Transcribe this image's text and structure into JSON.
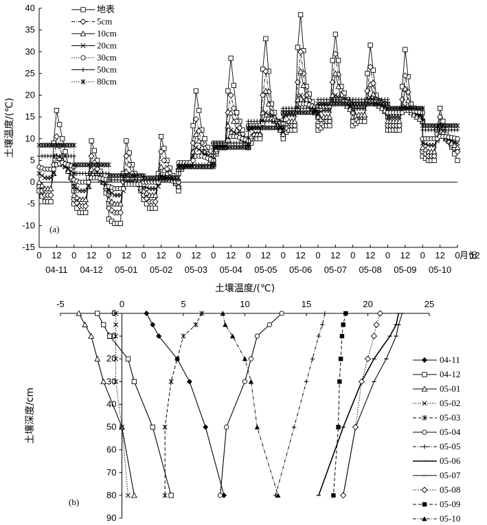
{
  "chart_data": [
    {
      "type": "line",
      "panel_label": "(a)",
      "ylabel": "土壤温度/(℃)",
      "ylim": [
        -15,
        40
      ],
      "yticks": [
        -15,
        -10,
        -5,
        0,
        5,
        10,
        15,
        20,
        25,
        30,
        35,
        40
      ],
      "x_hour_labels": [
        "0",
        "12",
        "0",
        "12",
        "0",
        "12",
        "0",
        "12",
        "0",
        "12",
        "0",
        "12",
        "0",
        "12",
        "0",
        "12",
        "0",
        "12",
        "0",
        "12",
        "0",
        "12",
        "0",
        "12",
        "0",
        "12"
      ],
      "x_month_labels": [
        "04-11",
        "04-12",
        "05-01",
        "05-02",
        "05-03",
        "05-04",
        "05-05",
        "05-06",
        "05-07",
        "05-08",
        "05-09",
        "05-10"
      ],
      "x_unit_label": "月份",
      "series_names": [
        "地表",
        "5cm",
        "10cm",
        "20cm",
        "30cm",
        "50cm",
        "80cm"
      ],
      "series": [
        {
          "name": "地表",
          "values": [
            [
              -2,
              -4.5,
              -4.5,
              9,
              16.5,
              10,
              -2
            ],
            [
              -5,
              -7,
              -7,
              1,
              9.5,
              5,
              -5
            ],
            [
              -8.5,
              -9.5,
              -9.5,
              2,
              9.5,
              4,
              -4
            ],
            [
              -4,
              -6,
              -6,
              2,
              10.5,
              5,
              -2
            ],
            [
              2,
              4,
              4,
              13,
              21,
              12,
              4
            ],
            [
              5,
              8,
              8,
              21,
              28.5,
              16,
              8
            ],
            [
              8,
              10,
              10,
              26,
              33,
              18,
              10
            ],
            [
              11,
              12,
              12,
              31,
              38.5,
              22,
              15
            ],
            [
              12,
              13,
              13,
              28,
              34,
              22,
              16
            ],
            [
              13,
              14,
              14,
              25,
              31.5,
              20,
              15
            ],
            [
              12,
              12,
              12,
              22,
              30.5,
              18,
              14
            ],
            [
              6,
              5,
              5,
              12,
              17,
              11,
              5
            ]
          ]
        },
        {
          "name": "5cm",
          "values": [
            [
              -1,
              -3,
              -3,
              4,
              10.5,
              6,
              -1
            ],
            [
              -4,
              -5.5,
              -5.5,
              0,
              6,
              3,
              -3
            ],
            [
              -6,
              -7,
              -7,
              0,
              6,
              2,
              -3
            ],
            [
              -3,
              -4.5,
              -4.5,
              1,
              7,
              3,
              -1
            ],
            [
              3,
              4,
              4,
              9,
              14.5,
              9,
              4
            ],
            [
              6,
              8,
              8,
              16,
              20,
              14,
              8
            ],
            [
              9,
              11,
              11,
              20,
              25.5,
              16,
              11
            ],
            [
              12,
              13,
              13,
              23,
              30,
              20,
              15
            ],
            [
              13,
              14,
              14,
              23,
              29.5,
              20,
              16
            ],
            [
              14,
              15,
              15,
              21,
              26.5,
              19,
              16
            ],
            [
              13,
              13,
              13,
              19,
              24.5,
              17,
              14
            ],
            [
              7,
              6,
              6,
              11,
              15,
              10,
              7
            ]
          ]
        },
        {
          "name": "10cm",
          "values": [
            [
              0,
              -1.5,
              -1.5,
              2,
              6,
              5,
              0
            ],
            [
              -3,
              -4,
              -4,
              -1,
              3,
              2,
              -2
            ],
            [
              -4,
              -5,
              -5,
              -1,
              2.5,
              1,
              -2
            ],
            [
              -2,
              -3,
              -3,
              0,
              3.5,
              2,
              -1
            ],
            [
              3,
              4,
              4,
              7,
              11,
              8,
              4
            ],
            [
              7,
              8,
              8,
              13,
              16,
              12,
              8
            ],
            [
              10,
              11,
              11,
              16,
              21,
              15,
              11
            ],
            [
              13,
              14,
              14,
              19,
              25.5,
              19,
              15
            ],
            [
              14,
              15,
              15,
              20,
              25,
              19,
              16
            ],
            [
              15,
              15.5,
              15.5,
              19,
              22.5,
              18,
              16
            ],
            [
              14,
              14,
              14,
              17,
              21.5,
              16,
              14
            ],
            [
              8,
              7,
              7,
              10,
              13,
              10,
              8
            ]
          ]
        },
        {
          "name": "20cm",
          "values": [
            [
              2,
              1,
              1,
              2,
              4,
              4,
              2
            ],
            [
              -1,
              -2,
              -2,
              -1,
              1,
              1,
              -1
            ],
            [
              -2,
              -3,
              -3,
              -2,
              0,
              0,
              -1
            ],
            [
              -1,
              -1.5,
              -1.5,
              -1,
              1.5,
              1,
              0
            ],
            [
              4,
              4,
              4,
              6,
              8,
              7,
              5
            ],
            [
              8,
              8.5,
              8.5,
              10,
              12,
              11,
              9
            ],
            [
              12,
              12.5,
              12.5,
              14,
              16,
              15,
              12
            ],
            [
              15,
              15.5,
              15.5,
              17,
              20,
              18,
              16
            ],
            [
              16,
              16.5,
              16.5,
              18,
              20,
              19,
              17
            ],
            [
              17,
              17,
              17,
              18,
              19.5,
              18.5,
              17
            ],
            [
              15,
              15,
              15,
              16,
              17.5,
              16.5,
              15
            ],
            [
              9,
              8.5,
              8.5,
              9.5,
              11,
              10,
              9
            ]
          ]
        },
        {
          "name": "30cm",
          "values": [
            [
              3.5,
              3,
              3,
              3,
              4,
              4.5,
              3.5
            ],
            [
              0.5,
              0,
              0,
              0,
              1,
              1,
              0.5
            ],
            [
              -1,
              -1.5,
              -1.5,
              -1.5,
              -0.5,
              -0.5,
              -0.5
            ],
            [
              0,
              0,
              0,
              0,
              0.5,
              0.5,
              0
            ],
            [
              4.5,
              4.5,
              4.5,
              5,
              6,
              6,
              5
            ],
            [
              9,
              9,
              9,
              9.5,
              10.5,
              10.5,
              9.5
            ],
            [
              13,
              13,
              13,
              13.5,
              14.5,
              14.5,
              13.5
            ],
            [
              16,
              16,
              16,
              16.5,
              18,
              18,
              17
            ],
            [
              17.5,
              17.5,
              17.5,
              18,
              19,
              19,
              18
            ],
            [
              18,
              18,
              18,
              18,
              18.5,
              18.5,
              18
            ],
            [
              16,
              16,
              16,
              16,
              16.5,
              16.5,
              16
            ],
            [
              10,
              10,
              10,
              10,
              10.5,
              10.5,
              10
            ]
          ]
        },
        {
          "name": "50cm",
          "values": [
            [
              6,
              6,
              6,
              6,
              6,
              6,
              6
            ],
            [
              2,
              2,
              2,
              2,
              2,
              2,
              2
            ],
            [
              0.5,
              0.5,
              0.5,
              0.5,
              0.5,
              0.5,
              0.5
            ],
            [
              0.5,
              0.5,
              0.5,
              0.5,
              0.5,
              0.5,
              0.5
            ],
            [
              4,
              4,
              4,
              4,
              4,
              4,
              4
            ],
            [
              9,
              9,
              9,
              9,
              9,
              9,
              9
            ],
            [
              14,
              14,
              14,
              14,
              14,
              14,
              14
            ],
            [
              17,
              17,
              17,
              17,
              17,
              17,
              17
            ],
            [
              19,
              19,
              19,
              19,
              19,
              19,
              19
            ],
            [
              19,
              19,
              19,
              19,
              19,
              19,
              19
            ],
            [
              17,
              17,
              17,
              17,
              17,
              17,
              17
            ],
            [
              12,
              12,
              12,
              12,
              12,
              12,
              12
            ]
          ]
        },
        {
          "name": "80cm",
          "values": [
            [
              8.5,
              8.5,
              8.5,
              8.5,
              8.5,
              8.5,
              8.5
            ],
            [
              4,
              4,
              4,
              4,
              4,
              4,
              4
            ],
            [
              1.5,
              1.5,
              1.5,
              1.5,
              1.5,
              1.5,
              1.5
            ],
            [
              1,
              1,
              1,
              1,
              1,
              1,
              1
            ],
            [
              3.5,
              3.5,
              3.5,
              3.5,
              3.5,
              3.5,
              3.5
            ],
            [
              8,
              8,
              8,
              8,
              8,
              8,
              8
            ],
            [
              12.5,
              12.5,
              12.5,
              12.5,
              12.5,
              12.5,
              12.5
            ],
            [
              16,
              16,
              16,
              16,
              16,
              16,
              16
            ],
            [
              18,
              18,
              18,
              18,
              18,
              18,
              18
            ],
            [
              18,
              18,
              18,
              18,
              18,
              18,
              18
            ],
            [
              17,
              17,
              17,
              17,
              17,
              17,
              17
            ],
            [
              13,
              13,
              13,
              13,
              13,
              13,
              13
            ]
          ]
        }
      ],
      "x_per_day_hours": [
        0,
        4,
        8,
        10,
        12,
        16,
        24
      ]
    },
    {
      "type": "line",
      "panel_label": "(b)",
      "xlabel": "土壤温度/(℃)",
      "ylabel": "土壤深度/cm",
      "xlim": [
        -5,
        25
      ],
      "xticks": [
        -5,
        0,
        5,
        10,
        15,
        20,
        25
      ],
      "ylim": [
        0,
        90
      ],
      "yticks": [
        0,
        10,
        20,
        30,
        40,
        50,
        60,
        70,
        80,
        90
      ],
      "depths": [
        0,
        5,
        10,
        20,
        30,
        50,
        80
      ],
      "series": [
        {
          "name": "04-11",
          "values": [
            2,
            2.5,
            3,
            4.5,
            5.5,
            6.8,
            8.3
          ]
        },
        {
          "name": "04-12",
          "values": [
            -2,
            -1.5,
            -1,
            0.5,
            1,
            2.5,
            4
          ]
        },
        {
          "name": "05-01",
          "values": [
            -3.5,
            -3,
            -2.5,
            -2,
            -1.5,
            0,
            1
          ]
        },
        {
          "name": "05-02",
          "values": [
            -0.5,
            -0.5,
            -0.5,
            -0.5,
            -0.5,
            0,
            0.5
          ]
        },
        {
          "name": "05-03",
          "values": [
            6.5,
            6,
            5,
            4.5,
            4,
            3.5,
            3.5
          ]
        },
        {
          "name": "05-04",
          "values": [
            13,
            12,
            11,
            10.5,
            10,
            8.5,
            8
          ]
        },
        {
          "name": "05-05",
          "values": [
            16.5,
            16.3,
            16,
            15.5,
            15,
            14,
            12.5
          ]
        },
        {
          "name": "05-06",
          "values": [
            22.5,
            22.3,
            21.8,
            20.5,
            19.5,
            18,
            16
          ]
        },
        {
          "name": "05-07",
          "values": [
            22.8,
            22.5,
            22.3,
            21.5,
            20.5,
            19,
            18
          ]
        },
        {
          "name": "05-08",
          "values": [
            21,
            20.7,
            20.5,
            20,
            19.5,
            19,
            18
          ]
        },
        {
          "name": "05-09",
          "values": [
            18.2,
            18,
            17.9,
            17.8,
            17.7,
            17.6,
            17.2
          ]
        },
        {
          "name": "05-10",
          "values": [
            8.2,
            8.4,
            9,
            10,
            10.5,
            11,
            12.7
          ]
        }
      ]
    }
  ]
}
